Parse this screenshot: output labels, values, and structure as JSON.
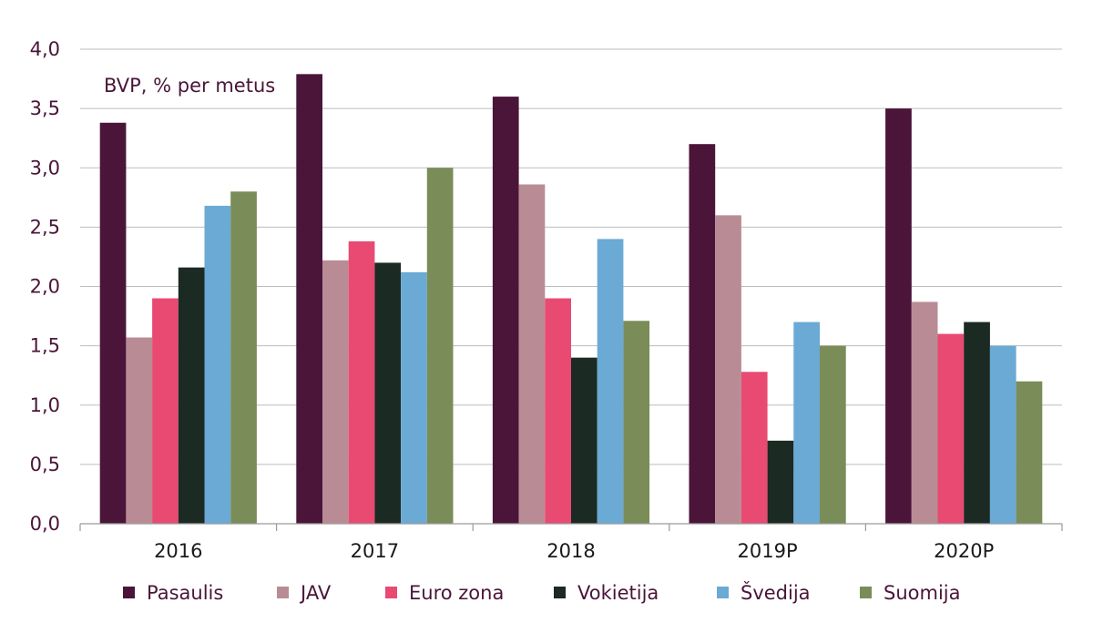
{
  "chart_data": {
    "type": "bar",
    "annotation": "BVP, % per metus",
    "categories": [
      "2016",
      "2017",
      "2018",
      "2019P",
      "2020P"
    ],
    "series": [
      {
        "name": "Pasaulis",
        "color": "#4a1538",
        "values": [
          3.38,
          3.79,
          3.6,
          3.2,
          3.5
        ]
      },
      {
        "name": "JAV",
        "color": "#b98c95",
        "values": [
          1.57,
          2.22,
          2.86,
          2.6,
          1.87
        ]
      },
      {
        "name": "Euro zona",
        "color": "#e84a72",
        "values": [
          1.9,
          2.38,
          1.9,
          1.28,
          1.6
        ]
      },
      {
        "name": "Vokietija",
        "color": "#1b2a22",
        "values": [
          2.16,
          2.2,
          1.4,
          0.7,
          1.7
        ]
      },
      {
        "name": "Švedija",
        "color": "#6aaad4",
        "values": [
          2.68,
          2.12,
          2.4,
          1.7,
          1.5
        ]
      },
      {
        "name": "Suomija",
        "color": "#7a8c58",
        "values": [
          2.8,
          3.0,
          1.71,
          1.5,
          1.2
        ]
      }
    ],
    "ylim": [
      0,
      4
    ],
    "yticks": [
      "0,0",
      "0,5",
      "1,0",
      "1,5",
      "2,0",
      "2,5",
      "3,0",
      "3,5",
      "4,0"
    ],
    "ytick_values": [
      0,
      0.5,
      1,
      1.5,
      2,
      2.5,
      3,
      3.5,
      4
    ],
    "grid": true,
    "legend_position": "bottom"
  }
}
